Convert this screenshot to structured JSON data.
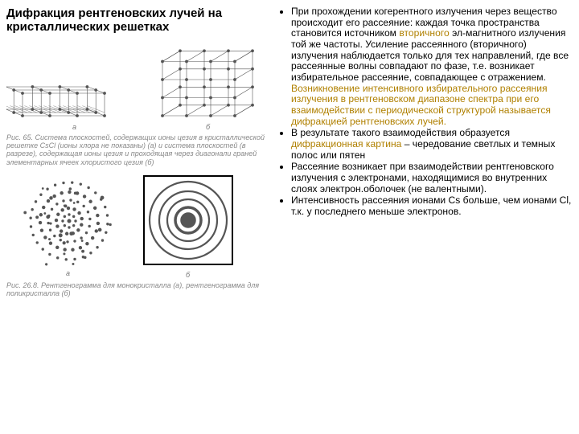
{
  "title": "Дифракция рентгеновских лучей на кристаллических решетках",
  "caption1": "Рис. 65. Система плоскостей, содержащих ионы цезия в кристаллической решетке CsCl (ионы хлора не показаны) (а) и система плоскостей (в разрезе), содержащая ионы цезия и проходящая через диагонали граней элементарных ячеек хлористого цезия (б)",
  "caption2": "Рис. 26.8. Рентгенограмма для монокристалла (а), рентгенограмма для поликристалла (б)",
  "bullets": [
    {
      "pre": "При прохождении когерентного излучения через вещество происходит его рассеяние: каждая точка пространства становится источником ",
      "hl1": "вторичного",
      "mid1": " эл-магнитного излучения той же частоты. Усиление рассеянного (вторичного) излучения наблюдается только для тех направлений, где все рассеянные волны совпадают по фазе, т.е. возникает избирательное рассеяние, совпадающее с отражением. ",
      "hl2": "Возникновение интенсивного избирательного рассеяния излучения в рентгеновском диапазоне спектра при его взаимодействии с периодической структурой называется дифракцией рентгеновских лучей.",
      "post": ""
    },
    {
      "pre": "В результате такого взаимодействия образуется ",
      "hl1": "дифракционная картина",
      "mid1": " – чередование светлых и темных полос или пятен",
      "hl2": "",
      "post": ""
    },
    {
      "pre": "Рассеяние возникает при взаимодействии рентгеновского излучения с электронами, находящимися во внутренних слоях электрон.оболочек (не валентными).",
      "hl1": "",
      "mid1": "",
      "hl2": "",
      "post": ""
    },
    {
      "pre": "Интенсивность рассеяния ионами Cs больше, чем ионами Cl, т.к. у последнего меньше электронов.",
      "hl1": "",
      "mid1": "",
      "hl2": "",
      "post": ""
    }
  ],
  "colors": {
    "highlight": "#b08000",
    "text": "#000000",
    "caption": "#888888",
    "figline": "#555555"
  },
  "lattice": {
    "cellcount": 3,
    "cellsize": 32
  },
  "rings": {
    "radii": [
      8,
      16,
      26,
      36,
      48
    ],
    "frame": 110
  }
}
